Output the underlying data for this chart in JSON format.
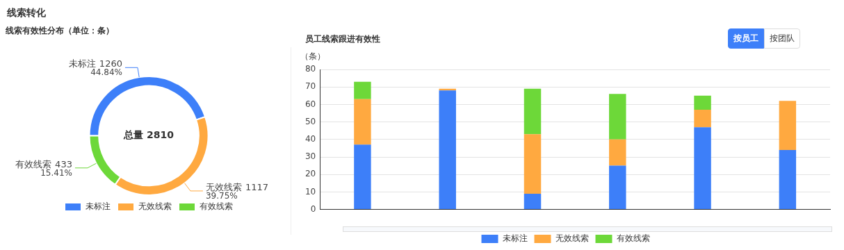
{
  "chart_data": [
    {
      "type": "donut",
      "title": "线索有效性分布（单位：条）",
      "categories": [
        "未标注",
        "无效线索",
        "有效线索"
      ],
      "values": [
        1260,
        1117,
        433
      ],
      "colors": [
        "#3d7ff9",
        "#ffa940",
        "#6dd839"
      ],
      "data_labels": true,
      "legend": "bottom",
      "annotations": [
        "线索转化",
        "总量 2810",
        {
          "text": "44.84%",
          "x": "未标注"
        },
        {
          "text": "39.75%",
          "x": "无效线索"
        },
        {
          "text": "15.41%",
          "x": "有效线索"
        }
      ]
    },
    {
      "type": "bar",
      "title": "员工线索跟进有效性",
      "ylabel": "（条）",
      "categories": [
        null,
        null,
        null,
        null,
        null,
        null
      ],
      "stacked": true,
      "series": [
        {
          "name": "未标注",
          "color": "#3d7ff9",
          "values": [
            37,
            68,
            9,
            25,
            47,
            34
          ]
        },
        {
          "name": "无效线索",
          "color": "#ffa940",
          "values": [
            26,
            1,
            34,
            15,
            10,
            28
          ]
        },
        {
          "name": "有效线索",
          "color": "#6dd839",
          "values": [
            10,
            0,
            26,
            26,
            8,
            0
          ]
        }
      ],
      "ylim": [
        0,
        80
      ],
      "yticks": [
        0,
        10,
        20,
        30,
        40,
        50,
        60,
        70,
        80
      ],
      "grid": "y",
      "legend": "bottom",
      "annotations": [
        "按员工",
        "按团队"
      ]
    }
  ]
}
